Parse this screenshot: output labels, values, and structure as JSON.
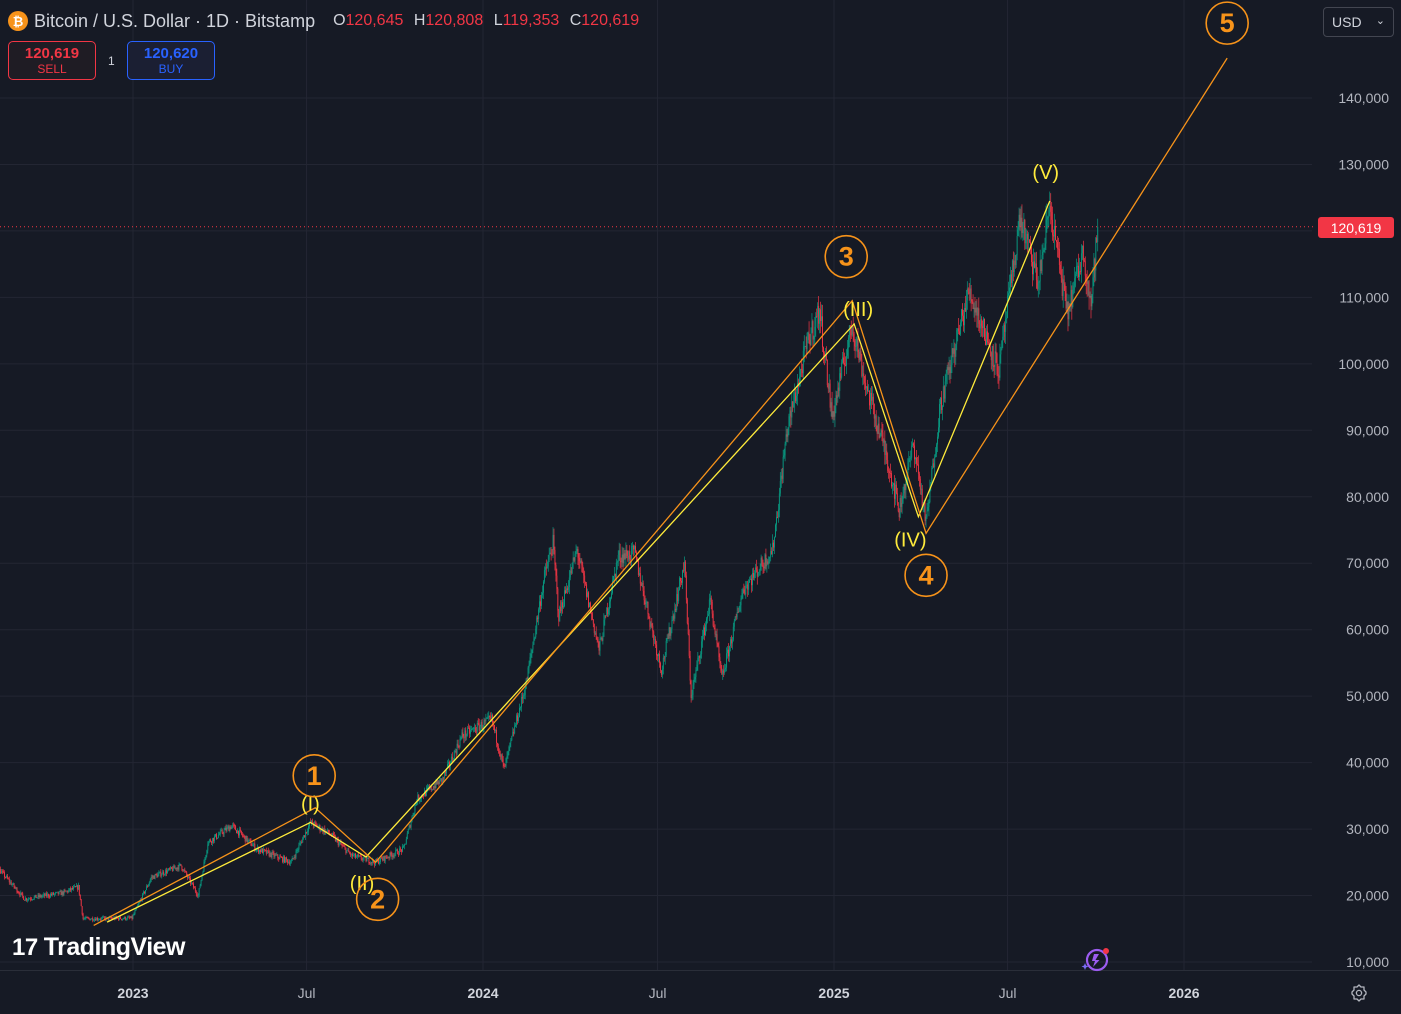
{
  "header": {
    "symbol": "Bitcoin / U.S. Dollar · 1D · Bitstamp",
    "coin_icon": "₿",
    "open_label": "O",
    "open": "120,645",
    "high_label": "H",
    "high": "120,808",
    "low_label": "L",
    "low": "119,353",
    "close_label": "C",
    "close": "120,619"
  },
  "trade": {
    "sell_price": "120,619",
    "sell_label": "SELL",
    "quantity": "1",
    "buy_price": "120,620",
    "buy_label": "BUY"
  },
  "currency": {
    "value": "USD",
    "chevron": "⌄"
  },
  "last_price_tag": "120,619",
  "logo": {
    "mark": "17",
    "text": "TradingView"
  },
  "icons": {
    "settings": "settings-icon",
    "spark": "ai-spark-icon"
  },
  "colors": {
    "background": "#161a25",
    "up": "#089981",
    "down": "#f23645",
    "wave_major": "#f7931a",
    "wave_minor": "#ffeb3b",
    "text": "#d1d4dc"
  },
  "chart_data": {
    "type": "candlestick",
    "symbol": "BTCUSD",
    "interval": "1D",
    "y_axis": {
      "ticks": [
        10000,
        20000,
        30000,
        40000,
        50000,
        60000,
        70000,
        80000,
        90000,
        100000,
        110000,
        120000,
        130000,
        140000
      ],
      "tick_labels": [
        "10,000",
        "20,000",
        "30,000",
        "40,000",
        "50,000",
        "60,000",
        "70,000",
        "80,000",
        "90,000",
        "100,000",
        "110,000",
        "",
        "130,000",
        "140,000"
      ],
      "range": [
        8000,
        150000
      ],
      "position": "right"
    },
    "x_axis": {
      "ticks": [
        {
          "date": "2023-01-01",
          "label": "2023",
          "bold": true
        },
        {
          "date": "2023-07-01",
          "label": "Jul",
          "bold": false
        },
        {
          "date": "2024-01-01",
          "label": "2024",
          "bold": true
        },
        {
          "date": "2024-07-01",
          "label": "Jul",
          "bold": false
        },
        {
          "date": "2025-01-01",
          "label": "2025",
          "bold": true
        },
        {
          "date": "2025-07-01",
          "label": "Jul",
          "bold": false
        },
        {
          "date": "2026-01-01",
          "label": "2026",
          "bold": true
        }
      ],
      "range": [
        "2022-07-01",
        "2026-04-15"
      ]
    },
    "grid": true,
    "last_price": 120619,
    "price_path": [
      [
        "2022-07-01",
        20000
      ],
      [
        "2022-08-15",
        23800
      ],
      [
        "2022-09-10",
        19500
      ],
      [
        "2022-10-20",
        20400
      ],
      [
        "2022-11-05",
        21300
      ],
      [
        "2022-11-10",
        16500
      ],
      [
        "2022-12-31",
        16600
      ],
      [
        "2023-01-20",
        22700
      ],
      [
        "2023-02-20",
        24500
      ],
      [
        "2023-03-10",
        20000
      ],
      [
        "2023-03-20",
        28000
      ],
      [
        "2023-04-14",
        30500
      ],
      [
        "2023-05-10",
        27000
      ],
      [
        "2023-06-15",
        25000
      ],
      [
        "2023-07-05",
        31000
      ],
      [
        "2023-07-25",
        29300
      ],
      [
        "2023-08-17",
        26000
      ],
      [
        "2023-09-11",
        25000
      ],
      [
        "2023-10-10",
        27000
      ],
      [
        "2023-10-24",
        34500
      ],
      [
        "2023-11-20",
        37500
      ],
      [
        "2023-12-10",
        44000
      ],
      [
        "2024-01-10",
        46500
      ],
      [
        "2024-01-23",
        39000
      ],
      [
        "2024-02-15",
        52000
      ],
      [
        "2024-03-05",
        68000
      ],
      [
        "2024-03-14",
        73000
      ],
      [
        "2024-03-20",
        62000
      ],
      [
        "2024-04-08",
        72000
      ],
      [
        "2024-05-01",
        57000
      ],
      [
        "2024-05-21",
        71000
      ],
      [
        "2024-06-07",
        71500
      ],
      [
        "2024-07-05",
        54000
      ],
      [
        "2024-07-29",
        70000
      ],
      [
        "2024-08-05",
        50000
      ],
      [
        "2024-08-25",
        64500
      ],
      [
        "2024-09-06",
        52500
      ],
      [
        "2024-09-28",
        66000
      ],
      [
        "2024-10-29",
        72000
      ],
      [
        "2024-11-13",
        90000
      ],
      [
        "2024-12-05",
        103500
      ],
      [
        "2024-12-17",
        108000
      ],
      [
        "2024-12-30",
        92000
      ],
      [
        "2025-01-20",
        106000
      ],
      [
        "2025-02-03",
        97000
      ],
      [
        "2025-02-25",
        86000
      ],
      [
        "2025-03-10",
        78000
      ],
      [
        "2025-03-25",
        88000
      ],
      [
        "2025-04-07",
        76000
      ],
      [
        "2025-04-22",
        94000
      ],
      [
        "2025-05-22",
        111000
      ],
      [
        "2025-06-22",
        99000
      ],
      [
        "2025-07-14",
        122000
      ],
      [
        "2025-08-02",
        112000
      ],
      [
        "2025-08-14",
        124000
      ],
      [
        "2025-09-01",
        107500
      ],
      [
        "2025-09-18",
        117000
      ],
      [
        "2025-09-26",
        109000
      ],
      [
        "2025-10-03",
        120619
      ]
    ],
    "elliott_wave_major": {
      "color": "#f7931a",
      "points": [
        {
          "date": "2022-11-21",
          "price": 15500,
          "label": ""
        },
        {
          "date": "2023-07-10",
          "price": 33200,
          "label": "1"
        },
        {
          "date": "2023-09-11",
          "price": 25000,
          "label": "2"
        },
        {
          "date": "2025-01-20",
          "price": 109500,
          "label": "3"
        },
        {
          "date": "2025-04-07",
          "price": 74500,
          "label": "4"
        },
        {
          "date": "2026-02-15",
          "price": 146000,
          "label": "5"
        }
      ]
    },
    "elliott_wave_minor": {
      "color": "#ffeb3b",
      "points": [
        {
          "date": "2022-12-05",
          "price": 16000,
          "label": ""
        },
        {
          "date": "2023-07-05",
          "price": 31000,
          "label": "(I)"
        },
        {
          "date": "2023-09-01",
          "price": 25800,
          "label": "(II)"
        },
        {
          "date": "2025-01-22",
          "price": 106000,
          "label": "(III)"
        },
        {
          "date": "2025-03-30",
          "price": 77000,
          "label": "(IV)"
        },
        {
          "date": "2025-08-14",
          "price": 124500,
          "label": "(V)"
        }
      ]
    }
  }
}
